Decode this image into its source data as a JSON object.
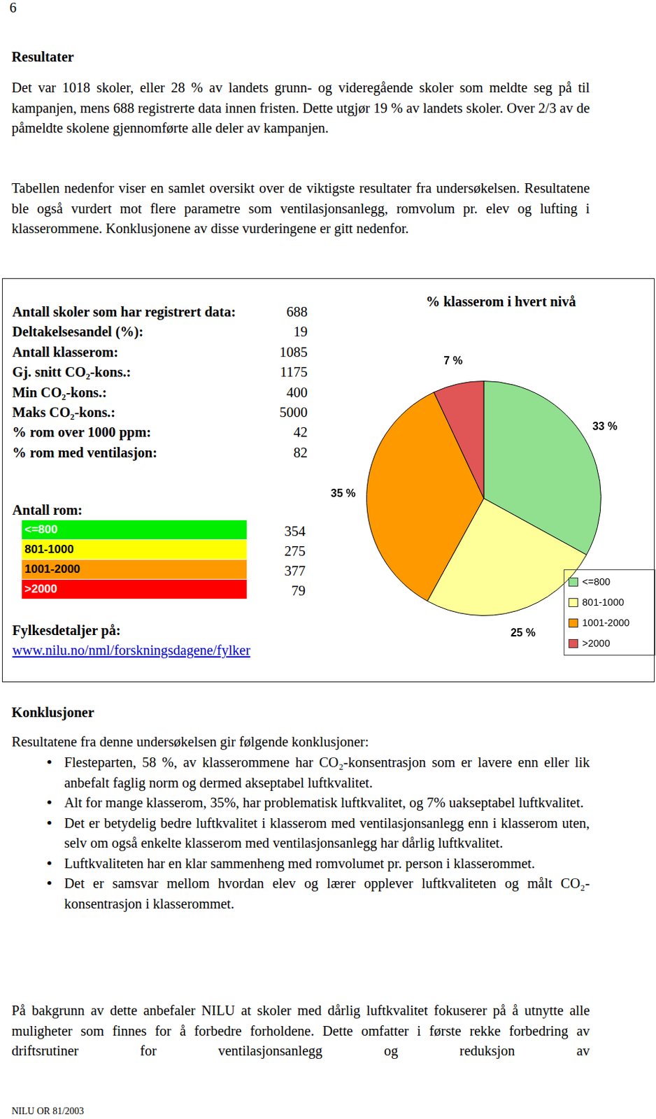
{
  "page_number": "6",
  "heading": "Resultater",
  "paragraphs": [
    "Det var 1018 skoler, eller 28 % av landets grunn- og videregående skoler som meldte seg på til kampanjen, mens 688 registrerte data innen fristen. Dette utgjør 19 % av landets skoler. Over 2/3 av de påmeldte skolene gjennomførte alle deler av kampanjen.",
    "Tabellen nedenfor viser en samlet oversikt over de viktigste resultater fra undersøkelsen. Resultatene ble også vurdert mot flere parametre som ventilasjonsanlegg, romvolum pr. elev og lufting i klasserommene. Konklusjonene av disse vurderingene er gitt nedenfor."
  ],
  "summary_box": {
    "stats": [
      {
        "label": "Antall skoler som har registrert data:",
        "value": 688
      },
      {
        "label": "Deltakelsesandel (%):",
        "value": 19
      },
      {
        "label": "Antall klasserom:",
        "value": 1085
      },
      {
        "label": "Gj. snitt CO₂-kons.:",
        "value": 1175
      },
      {
        "label": "Min CO₂-kons.:",
        "value": 400
      },
      {
        "label": "Maks CO₂-kons.:",
        "value": 5000
      },
      {
        "label": "% rom over 1000 ppm:",
        "value": 42
      },
      {
        "label": "% rom med ventilasjon:",
        "value": 82
      }
    ],
    "rooms_heading": "Antall rom:",
    "rooms": [
      {
        "label": "<=800",
        "value": 354,
        "color": "#00ee00"
      },
      {
        "label": "801-1000",
        "value": 275,
        "color": "#ffff00"
      },
      {
        "label": "1001-2000",
        "value": 377,
        "color": "#ff9900"
      },
      {
        "label": ">2000",
        "value": 79,
        "color": "#ff0000"
      }
    ],
    "link_label": "Fylkesdetaljer på:",
    "link": "www.nilu.no/nml/forskningsdagene/fylker"
  },
  "chart_data": {
    "type": "pie",
    "title": "% klasserom i hvert nivå",
    "categories": [
      "<=800",
      "801-1000",
      "1001-2000",
      ">2000"
    ],
    "values": [
      33,
      25,
      35,
      7
    ],
    "value_labels": [
      "33 %",
      "25 %",
      "35 %",
      "7 %"
    ],
    "colors": [
      "#90e090",
      "#ffff99",
      "#ff9900",
      "#e05555"
    ],
    "data_labels": true,
    "legend": "bottom right"
  },
  "conclusions": {
    "heading": "Konklusjoner",
    "intro": "Resultatene fra denne undersøkelsen gir følgende konklusjoner:",
    "bullets": [
      "Flesteparten, 58 %, av klasserommene har CO₂-konsentrasjon som er lavere enn eller lik anbefalt faglig norm og dermed akseptabel luftkvalitet.",
      "Alt for mange klasserom, 35%, har problematisk luftkvalitet, og 7% uakseptabel luftkvalitet.",
      "Det er betydelig bedre luftkvalitet i klasserom med ventilasjonsanlegg enn i klasserom uten, selv om også enkelte klasserom med ventilasjonsanlegg har dårlig luftkvalitet.",
      "Luftkvaliteten har en klar sammenheng med romvolumet pr. person i klasserommet.",
      "Det er samsvar mellom hvordan elev og lærer opplever luftkvaliteten og målt CO₂-konsentrasjon i klasserommet."
    ],
    "closing": "På bakgrunn av dette anbefaler NILU at skoler med dårlig luftkvalitet fokuserer på å utnytte alle muligheter som finnes for å forbedre forholdene. Dette omfatter i første rekke forbedring av driftsrutiner for ventilasjonsanlegg og reduksjon av"
  },
  "footer": "NILU OR 81/2003"
}
